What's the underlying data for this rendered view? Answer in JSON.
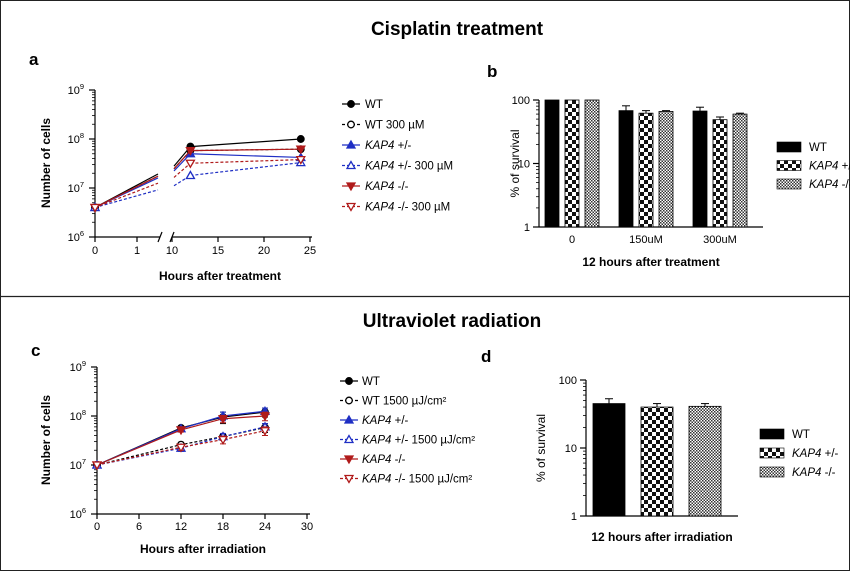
{
  "sections": [
    {
      "title": "Cisplatin treatment"
    },
    {
      "title": "Ultraviolet radiation"
    }
  ],
  "chart_data": [
    {
      "panel": "a",
      "type": "line",
      "ylabel": "Number of cells",
      "xlabel": "Hours after treatment",
      "yscale": "log",
      "ylim": [
        1000000,
        1000000000
      ],
      "yticks": [
        {
          "e": "6"
        },
        {
          "e": "7"
        },
        {
          "e": "8"
        },
        {
          "e": "9"
        }
      ],
      "xticks_left": [
        "0",
        "1"
      ],
      "xticks_right": [
        "10",
        "15",
        "20",
        "25"
      ],
      "x_axis_break": true,
      "x": [
        0,
        12,
        24
      ],
      "series": [
        {
          "prefix": "",
          "name": "WT",
          "color": "#000000",
          "marker": "circle",
          "fill": "filled",
          "dash": "solid",
          "values": [
            4000000,
            70000000,
            100000000
          ]
        },
        {
          "prefix": "",
          "name": "WT 300 µM",
          "color": "#000000",
          "marker": "circle",
          "fill": "open",
          "dash": "dotted",
          "values": [
            4000000,
            58000000,
            62000000
          ]
        },
        {
          "prefix": "KAP4",
          "name": " +/-",
          "color": "#1f2fc4",
          "marker": "triangle",
          "fill": "filled",
          "dash": "solid",
          "values": [
            4000000,
            50000000,
            42000000
          ]
        },
        {
          "prefix": "KAP4",
          "name": " +/- 300 µM",
          "color": "#1f2fc4",
          "marker": "triangle",
          "fill": "open",
          "dash": "dotted",
          "values": [
            4000000,
            18000000,
            33000000
          ]
        },
        {
          "prefix": "KAP4",
          "name": " -/-",
          "color": "#b01a1a",
          "marker": "triangle-down",
          "fill": "filled",
          "dash": "solid",
          "values": [
            4000000,
            58000000,
            62000000
          ]
        },
        {
          "prefix": "KAP4",
          "name": " -/- 300 µM",
          "color": "#b01a1a",
          "marker": "triangle-down",
          "fill": "open",
          "dash": "dotted",
          "values": [
            4000000,
            32000000,
            38000000
          ]
        }
      ]
    },
    {
      "panel": "b",
      "type": "bar",
      "ylabel": "% of survival",
      "xlabel": "12 hours after treatment",
      "yscale": "log",
      "ylim": [
        1,
        100
      ],
      "yticks": [
        "1",
        "10",
        "100"
      ],
      "categories": [
        "0",
        "150uM",
        "300uM"
      ],
      "series": [
        {
          "prefix": "",
          "name": "WT",
          "pattern": "solid",
          "values": [
            100,
            68,
            67
          ],
          "errors": [
            0,
            13,
            10
          ]
        },
        {
          "prefix": "KAP4",
          "name": " +/-",
          "pattern": "checker",
          "values": [
            100,
            62,
            49
          ],
          "errors": [
            0,
            6,
            5
          ]
        },
        {
          "prefix": "KAP4",
          "name": " -/-",
          "pattern": "fine",
          "values": [
            100,
            66,
            60
          ],
          "errors": [
            0,
            2,
            2
          ]
        }
      ]
    },
    {
      "panel": "c",
      "type": "line",
      "ylabel": "Number of cells",
      "xlabel": "Hours after irradiation",
      "yscale": "log",
      "ylim": [
        1000000,
        1000000000
      ],
      "yticks": [
        {
          "e": "6"
        },
        {
          "e": "7"
        },
        {
          "e": "8"
        },
        {
          "e": "9"
        }
      ],
      "xticks": [
        "0",
        "6",
        "12",
        "18",
        "24",
        "30"
      ],
      "x": [
        0,
        12,
        18,
        24
      ],
      "series": [
        {
          "prefix": "",
          "name": "WT",
          "color": "#000000",
          "marker": "circle",
          "fill": "filled",
          "dash": "solid",
          "values": [
            10000000,
            57000000,
            95000000,
            120000000
          ],
          "errors": [
            0,
            5000000,
            25000000,
            25000000
          ]
        },
        {
          "prefix": "",
          "name": "WT 1500 µJ/cm²",
          "color": "#000000",
          "marker": "circle",
          "fill": "open",
          "dash": "dotted",
          "values": [
            10000000,
            26000000,
            38000000,
            58000000
          ],
          "errors": [
            0,
            3000000,
            5000000,
            12000000
          ]
        },
        {
          "prefix": "KAP4",
          "name": " +/-",
          "color": "#1f2fc4",
          "marker": "triangle",
          "fill": "filled",
          "dash": "solid",
          "values": [
            10000000,
            55000000,
            100000000,
            125000000
          ],
          "errors": [
            0,
            5000000,
            20000000,
            20000000
          ]
        },
        {
          "prefix": "KAP4",
          "name": " +/-  1500 µJ/cm²",
          "color": "#1f2fc4",
          "marker": "triangle",
          "fill": "open",
          "dash": "dotted",
          "values": [
            10000000,
            22000000,
            38000000,
            60000000
          ],
          "errors": [
            0,
            3000000,
            6000000,
            10000000
          ]
        },
        {
          "prefix": "KAP4",
          "name": " -/-",
          "color": "#b01a1a",
          "marker": "triangle-down",
          "fill": "filled",
          "dash": "solid",
          "values": [
            10000000,
            52000000,
            88000000,
            100000000
          ],
          "errors": [
            0,
            5000000,
            15000000,
            20000000
          ]
        },
        {
          "prefix": "KAP4",
          "name": " -/-  1500 µJ/cm²",
          "color": "#b01a1a",
          "marker": "triangle-down",
          "fill": "open",
          "dash": "dotted",
          "values": [
            10000000,
            23000000,
            33000000,
            50000000
          ],
          "errors": [
            0,
            3000000,
            6000000,
            10000000
          ]
        }
      ]
    },
    {
      "panel": "d",
      "type": "bar",
      "ylabel": "% of survival",
      "xlabel": "12 hours after irradiation",
      "yscale": "log",
      "ylim": [
        1,
        100
      ],
      "yticks": [
        "1",
        "10",
        "100"
      ],
      "categories": [
        ""
      ],
      "series": [
        {
          "prefix": "",
          "name": "WT",
          "pattern": "solid",
          "values": [
            45
          ],
          "errors": [
            8
          ]
        },
        {
          "prefix": "KAP4",
          "name": " +/-",
          "pattern": "checker",
          "values": [
            40
          ],
          "errors": [
            5
          ]
        },
        {
          "prefix": "KAP4",
          "name": " -/-",
          "pattern": "fine",
          "values": [
            41
          ],
          "errors": [
            4
          ]
        }
      ]
    }
  ]
}
